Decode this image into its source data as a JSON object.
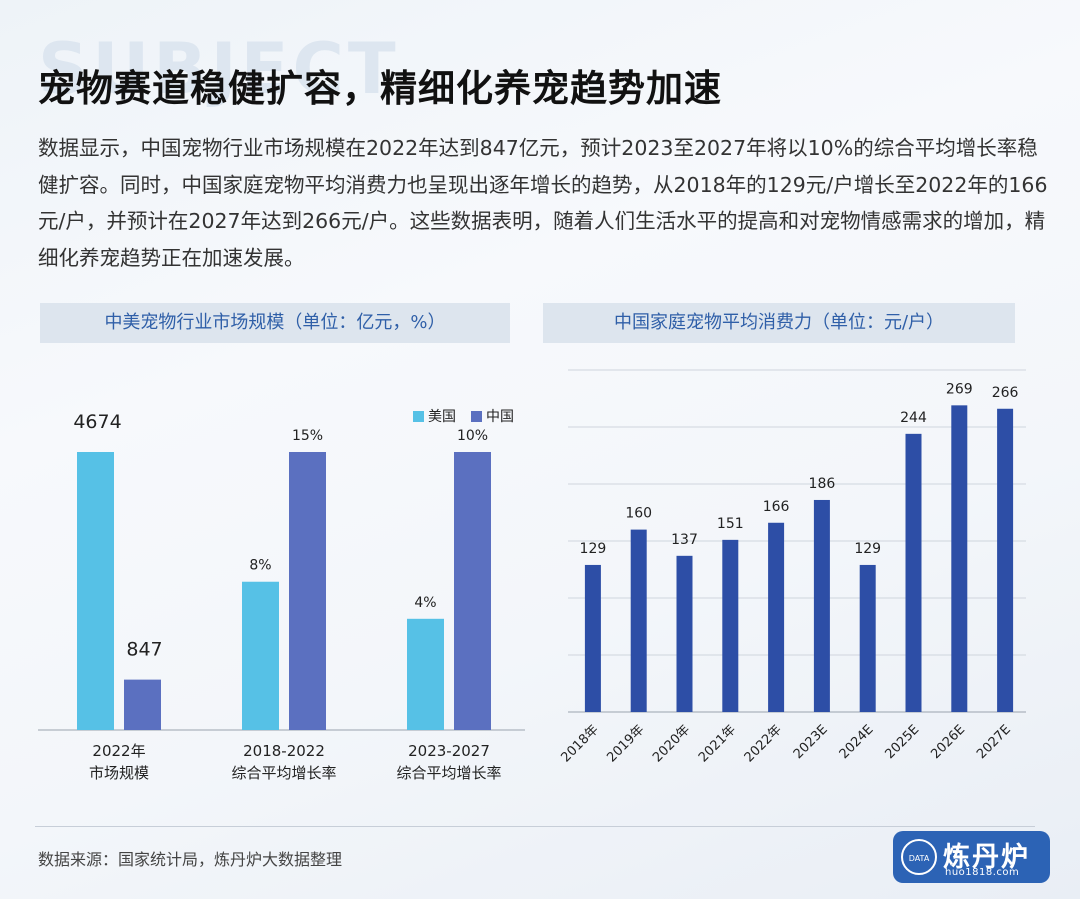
{
  "header": {
    "watermark": "SUBJECT",
    "title": "宠物赛道稳健扩容，精细化养宠趋势加速",
    "intro": "数据显示，中国宠物行业市场规模在2022年达到847亿元，预计2023至2027年将以10%的综合平均增长率稳健扩容。同时，中国家庭宠物平均消费力也呈现出逐年增长的趋势，从2018年的129元/户增长至2022年的166元/户，并预计在2027年达到266元/户。这些数据表明，随着人们生活水平的提高和对宠物情感需求的增加，精细化养宠趋势正在加速发展。"
  },
  "colors": {
    "us": "#56c1e6",
    "china": "#5b70c0",
    "consumption": "#2d4ea6",
    "panel_title": "#2f5fa8"
  },
  "chart_data": [
    {
      "type": "bar",
      "title": "中美宠物行业市场规模（单位：亿元，%）",
      "categories": [
        [
          "2022年",
          "市场规模"
        ],
        [
          "2018-2022",
          "综合平均增长率"
        ],
        [
          "2023-2027",
          "综合平均增长率"
        ]
      ],
      "series": [
        {
          "name": "美国",
          "values": [
            4674,
            8,
            4
          ],
          "labels": [
            "4674",
            "8%",
            "4%"
          ]
        },
        {
          "name": "中国",
          "values": [
            847,
            15,
            10
          ],
          "labels": [
            "847",
            "15%",
            "10%"
          ]
        }
      ],
      "legend": "top-right",
      "grid": false
    },
    {
      "type": "bar",
      "title": "中国家庭宠物平均消费力（单位：元/户）",
      "categories": [
        "2018年",
        "2019年",
        "2020年",
        "2021年",
        "2022年",
        "2023E",
        "2024E",
        "2025E",
        "2026E",
        "2027E"
      ],
      "values": [
        129,
        160,
        137,
        151,
        166,
        186,
        129,
        244,
        269,
        266
      ],
      "ylim": [
        0,
        300
      ],
      "grid": true
    }
  ],
  "footer": {
    "source": "数据来源：国家统计局，炼丹炉大数据整理",
    "logo_name": "炼丹炉",
    "logo_tag": "DATA",
    "logo_url": "huo1818.com"
  }
}
